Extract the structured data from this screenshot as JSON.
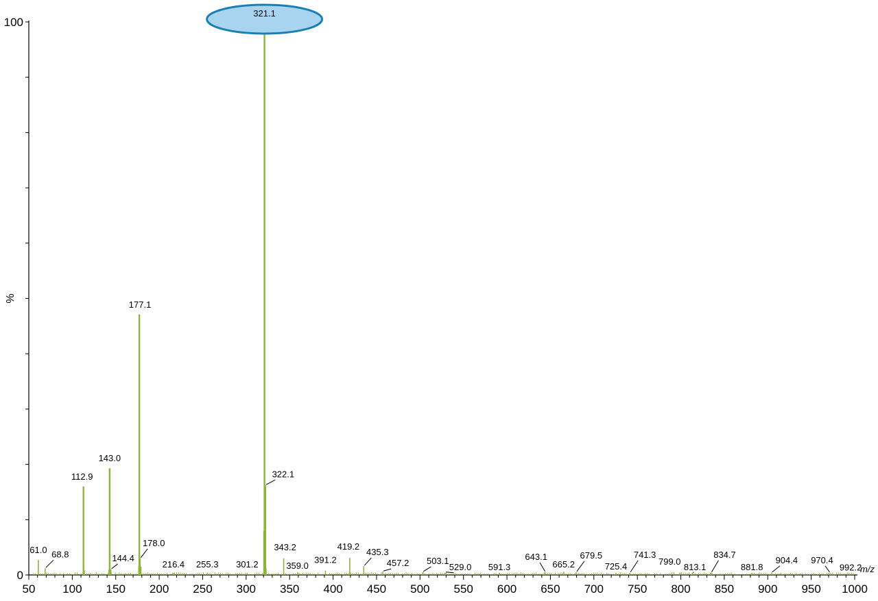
{
  "chart_data": {
    "type": "bar",
    "title": "",
    "xlabel": "m/z",
    "ylabel": "%",
    "xlim": [
      50,
      1000
    ],
    "ylim": [
      0,
      100
    ],
    "x_ticks": [
      50,
      100,
      150,
      200,
      250,
      300,
      350,
      400,
      450,
      500,
      550,
      600,
      650,
      700,
      750,
      800,
      850,
      900,
      950,
      1000
    ],
    "y_tick_labels": [
      "0",
      "%",
      "100"
    ],
    "grid": false,
    "legend": "none",
    "bar_color": "#8db33a",
    "highlight_fill": "#a8d4ef",
    "highlight_stroke": "#1a7fb5",
    "highlight_peak": "321.1",
    "peaks": [
      {
        "mz": 61.0,
        "label": "61.0",
        "intensity": 2.7
      },
      {
        "mz": 68.8,
        "label": "68.8",
        "intensity": 1.2
      },
      {
        "mz": 112.9,
        "label": "112.9",
        "intensity": 16.0
      },
      {
        "mz": 143.0,
        "label": "143.0",
        "intensity": 19.3
      },
      {
        "mz": 144.4,
        "label": "144.4",
        "intensity": 1.0
      },
      {
        "mz": 177.1,
        "label": "177.1",
        "intensity": 47.1
      },
      {
        "mz": 178.0,
        "label": "178.0",
        "intensity": 3.0
      },
      {
        "mz": 216.4,
        "label": "216.4",
        "intensity": 0.4
      },
      {
        "mz": 255.3,
        "label": "255.3",
        "intensity": 0.4
      },
      {
        "mz": 301.2,
        "label": "301.2",
        "intensity": 0.4
      },
      {
        "mz": 321.1,
        "label": "321.1",
        "intensity": 100
      },
      {
        "mz": 322.1,
        "label": "322.1",
        "intensity": 16.2
      },
      {
        "mz": 343.2,
        "label": "343.2",
        "intensity": 3.0
      },
      {
        "mz": 359.0,
        "label": "359.0",
        "intensity": 0.5
      },
      {
        "mz": 391.2,
        "label": "391.2",
        "intensity": 0.8
      },
      {
        "mz": 419.2,
        "label": "419.2",
        "intensity": 3.1
      },
      {
        "mz": 435.3,
        "label": "435.3",
        "intensity": 1.6
      },
      {
        "mz": 457.2,
        "label": "457.2",
        "intensity": 0.6
      },
      {
        "mz": 503.1,
        "label": "503.1",
        "intensity": 0.5
      },
      {
        "mz": 529.0,
        "label": "529.0",
        "intensity": 0.4
      },
      {
        "mz": 591.3,
        "label": "591.3",
        "intensity": 0.4
      },
      {
        "mz": 643.1,
        "label": "643.1",
        "intensity": 0.5
      },
      {
        "mz": 665.2,
        "label": "665.2",
        "intensity": 0.6
      },
      {
        "mz": 679.5,
        "label": "679.5",
        "intensity": 0.5
      },
      {
        "mz": 725.4,
        "label": "725.4",
        "intensity": 0.4
      },
      {
        "mz": 741.3,
        "label": "741.3",
        "intensity": 0.4
      },
      {
        "mz": 799.0,
        "label": "799.0",
        "intensity": 0.4
      },
      {
        "mz": 813.1,
        "label": "813.1",
        "intensity": 0.4
      },
      {
        "mz": 834.7,
        "label": "834.7",
        "intensity": 0.4
      },
      {
        "mz": 881.8,
        "label": "881.8",
        "intensity": 0.4
      },
      {
        "mz": 904.4,
        "label": "904.4",
        "intensity": 0.4
      },
      {
        "mz": 970.4,
        "label": "970.4",
        "intensity": 0.4
      },
      {
        "mz": 992.2,
        "label": "992.2",
        "intensity": 0.3
      }
    ]
  }
}
